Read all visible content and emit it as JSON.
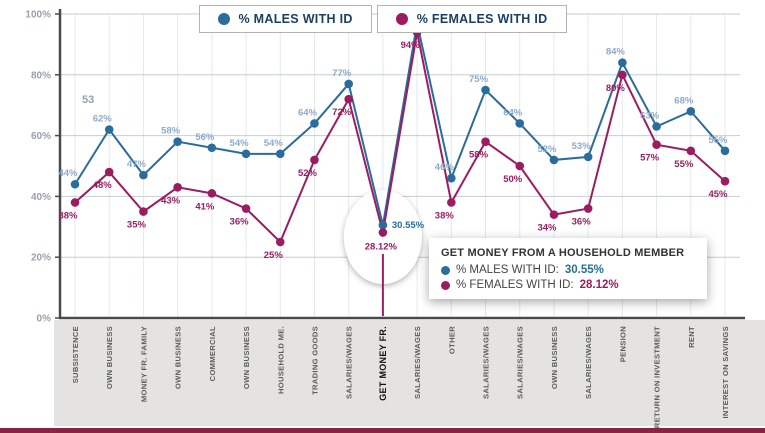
{
  "colors": {
    "male": "#2A6C9B",
    "female": "#9C1C60",
    "male_label": "#8FA9CB",
    "grid": "#C3CDD9",
    "axis": "#4A4A4A",
    "band": "#E5E3E1",
    "strip": "#8A2342"
  },
  "legend": {
    "items": [
      {
        "label": "% MALES WITH ID",
        "series": "male"
      },
      {
        "label": "% FEMALES WITH ID",
        "series": "female"
      }
    ]
  },
  "annotation": {
    "text": "53"
  },
  "tooltip": {
    "title": "GET MONEY FROM A HOUSEHOLD MEMBER",
    "rows": [
      {
        "label": "% MALES WITH ID:",
        "value": "30.55%",
        "series": "male"
      },
      {
        "label": "% FEMALES WITH ID:",
        "value": "28.12%",
        "series": "female"
      }
    ]
  },
  "chart_data": {
    "type": "line",
    "title": "",
    "xlabel": "",
    "ylabel": "",
    "ylim": [
      0,
      100
    ],
    "yticks": [
      "0%",
      "20%",
      "40%",
      "60%",
      "80%",
      "100%"
    ],
    "grid": true,
    "legend_position": "top",
    "highlight_index": 9,
    "categories": [
      "SUBSISTENCE",
      "OWN BUSINESS",
      "MONEY FR. FAMILY",
      "OWN BUSINESS",
      "COMMERCIAL",
      "OWN BUSINESS",
      "HOUSEHOLD ME.",
      "TRADING GOODS",
      "SALARIES/WAGES",
      "GET MONEY FR.",
      "SALARIES/WAGES",
      "OTHER",
      "SALARIES/WAGES",
      "SALARIES/WAGES",
      "OWN BUSINESS",
      "SALARIES/WAGES",
      "PENSION",
      "RETURN ON INVESTMENT",
      "RENT",
      "INTEREST ON SAVINGS"
    ],
    "series": [
      {
        "name": "% MALES WITH ID",
        "values": [
          44,
          62,
          47,
          58,
          56,
          54,
          54,
          64,
          77,
          30.55,
          97,
          46,
          75,
          64,
          52,
          53,
          84,
          63,
          68,
          55
        ]
      },
      {
        "name": "% FEMALES WITH ID",
        "values": [
          38,
          48,
          35,
          43,
          41,
          36,
          25,
          52,
          72,
          28.12,
          94,
          38,
          58,
          50,
          34,
          36,
          80,
          57,
          55,
          45
        ]
      }
    ]
  }
}
